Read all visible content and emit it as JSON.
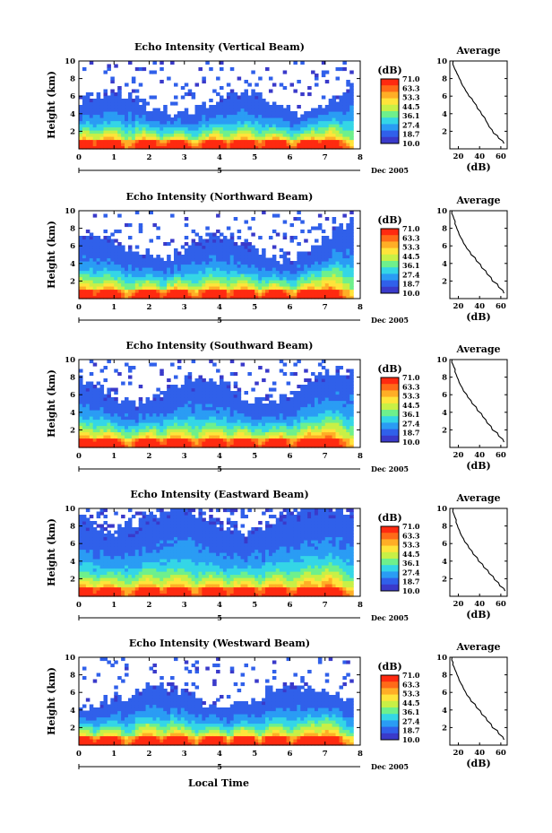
{
  "chart_data": {
    "type": "heatmap",
    "xlabel": "Local Time",
    "date_label": "Dec 2005",
    "date_marker": "5",
    "xlim": [
      0,
      8
    ],
    "x_ticks": [
      "0",
      "1",
      "2",
      "3",
      "4",
      "5",
      "6",
      "7",
      "8"
    ],
    "ylim": [
      0,
      10
    ],
    "y_ticks": [
      "2",
      "4",
      "6",
      "8",
      "10"
    ],
    "ylabel": "Height (km)",
    "colorbar": {
      "unit": "(dB)",
      "labels": [
        "71.0",
        "63.3",
        "53.3",
        "44.5",
        "36.1",
        "27.4",
        "18.7",
        "10.0"
      ],
      "colors": [
        "#ff2a10",
        "#ff6a18",
        "#ffae26",
        "#ffe43a",
        "#c8f046",
        "#6ef08c",
        "#34d6e6",
        "#2a9cf4",
        "#3060ea",
        "#3a3aca"
      ]
    },
    "average_profile": {
      "title": "Average",
      "xlabel": "(dB)",
      "ylim": [
        0,
        10
      ],
      "y_ticks": [
        "2",
        "4",
        "6",
        "8",
        "10"
      ]
    },
    "panels": [
      {
        "title": "Echo Intensity (Vertical Beam)",
        "avg_x_ticks": [
          "20",
          "40",
          "60"
        ],
        "avg_xlim": [
          12,
          66
        ],
        "avg_profile": [
          [
            63,
            0.6
          ],
          [
            58,
            1.2
          ],
          [
            53,
            1.8
          ],
          [
            49,
            2.5
          ],
          [
            46,
            3.2
          ],
          [
            42,
            3.9
          ],
          [
            38,
            4.6
          ],
          [
            34,
            5.4
          ],
          [
            30,
            6.0
          ],
          [
            27,
            6.6
          ],
          [
            24,
            7.2
          ],
          [
            22,
            7.8
          ],
          [
            20,
            8.3
          ],
          [
            18,
            8.8
          ],
          [
            16,
            9.3
          ],
          [
            15,
            10.0
          ]
        ]
      },
      {
        "title": "Echo Intensity (Northward Beam)",
        "avg_x_ticks": [
          "20",
          "40",
          "60"
        ],
        "avg_xlim": [
          12,
          66
        ],
        "avg_profile": [
          [
            63,
            0.6
          ],
          [
            58,
            1.3
          ],
          [
            52,
            2.0
          ],
          [
            47,
            2.8
          ],
          [
            42,
            3.5
          ],
          [
            37,
            4.3
          ],
          [
            32,
            5.0
          ],
          [
            28,
            5.7
          ],
          [
            25,
            6.3
          ],
          [
            22,
            7.0
          ],
          [
            20,
            7.6
          ],
          [
            18,
            8.2
          ],
          [
            17,
            8.8
          ],
          [
            15,
            9.4
          ],
          [
            14,
            10.0
          ]
        ]
      },
      {
        "title": "Echo Intensity (Southward Beam)",
        "avg_x_ticks": [
          "20",
          "40",
          "60"
        ],
        "avg_xlim": [
          12,
          66
        ],
        "avg_profile": [
          [
            63,
            0.6
          ],
          [
            58,
            1.3
          ],
          [
            52,
            2.0
          ],
          [
            47,
            2.8
          ],
          [
            43,
            3.5
          ],
          [
            38,
            4.2
          ],
          [
            33,
            5.0
          ],
          [
            29,
            5.7
          ],
          [
            25,
            6.4
          ],
          [
            22,
            7.1
          ],
          [
            20,
            7.7
          ],
          [
            18,
            8.3
          ],
          [
            17,
            8.9
          ],
          [
            15,
            9.4
          ],
          [
            14,
            10.0
          ]
        ]
      },
      {
        "title": "Echo Intensity (Eastward Beam)",
        "avg_x_ticks": [
          "20",
          "40",
          "60"
        ],
        "avg_xlim": [
          12,
          66
        ],
        "avg_profile": [
          [
            64,
            0.6
          ],
          [
            59,
            1.2
          ],
          [
            54,
            1.9
          ],
          [
            49,
            2.6
          ],
          [
            44,
            3.3
          ],
          [
            39,
            4.0
          ],
          [
            34,
            4.8
          ],
          [
            30,
            5.5
          ],
          [
            26,
            6.2
          ],
          [
            23,
            6.9
          ],
          [
            21,
            7.5
          ],
          [
            19,
            8.1
          ],
          [
            18,
            8.7
          ],
          [
            16,
            9.3
          ],
          [
            15,
            10.0
          ]
        ]
      },
      {
        "title": "Echo Intensity (Westward Beam)",
        "avg_x_ticks": [
          "20",
          "40",
          "60"
        ],
        "avg_xlim": [
          12,
          66
        ],
        "avg_profile": [
          [
            63,
            0.6
          ],
          [
            58,
            1.3
          ],
          [
            52,
            2.0
          ],
          [
            47,
            2.8
          ],
          [
            42,
            3.5
          ],
          [
            37,
            4.3
          ],
          [
            32,
            5.0
          ],
          [
            28,
            5.7
          ],
          [
            25,
            6.4
          ],
          [
            22,
            7.1
          ],
          [
            20,
            7.7
          ],
          [
            18,
            8.3
          ],
          [
            16,
            8.9
          ],
          [
            15,
            9.4
          ],
          [
            14,
            10.0
          ]
        ]
      }
    ]
  }
}
